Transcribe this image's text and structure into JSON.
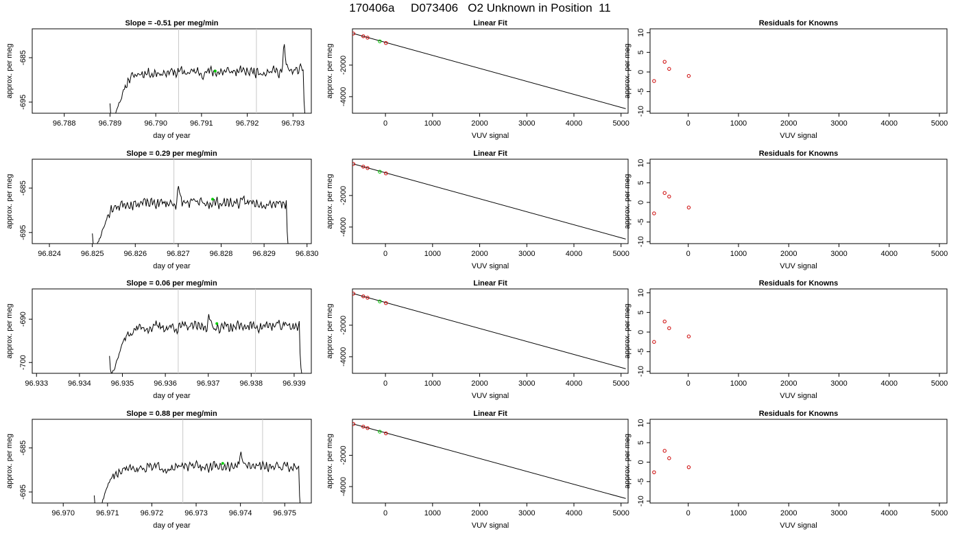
{
  "figure_title": "170406a     D073406   O2 Unknown in Position  11",
  "row_titles": [
    "Slope =  -0.51  per meg/min",
    "Slope =  0.29  per meg/min",
    "Slope =  0.06  per meg/min",
    "Slope =  0.88  per meg/min"
  ],
  "colors": {
    "trace": "#000000",
    "vline": "#c8c8c8",
    "known": "#cc0000",
    "unknown": "#00cc00"
  },
  "chart_data": [
    {
      "type": "line",
      "title": "Slope =  -0.51  per meg/min",
      "xlabel": "day of year",
      "ylabel": "approx. per meg",
      "xlim": [
        96.7873,
        96.7934
      ],
      "ylim": [
        -697.5,
        -678.5
      ],
      "xticks": [
        "96.788",
        "96.789",
        "96.790",
        "96.791",
        "96.792",
        "96.793"
      ],
      "xtick_values": [
        96.788,
        96.789,
        96.79,
        96.791,
        96.792,
        96.793
      ],
      "yticks": [
        "-685",
        "-695"
      ],
      "ytick_values": [
        -685,
        -695
      ],
      "window_lines": [
        96.7905,
        96.7922
      ],
      "unknown_point": {
        "x": 96.7913,
        "y": -688
      },
      "trace": {
        "start": 96.789,
        "end": 96.7933,
        "base": -688.5,
        "slope": 0.6,
        "amp": 1.8,
        "seed": 11,
        "spikes": [
          [
            96.7928,
            8
          ]
        ]
      }
    },
    {
      "type": "line",
      "title": "Slope =  0.29  per meg/min",
      "xlabel": "day of year",
      "ylabel": "approx. per meg",
      "xlim": [
        96.8236,
        96.8301
      ],
      "ylim": [
        -697.5,
        -678.5
      ],
      "xticks": [
        "96.824",
        "96.825",
        "96.826",
        "96.827",
        "96.828",
        "96.829",
        "96.830"
      ],
      "xtick_values": [
        96.824,
        96.825,
        96.826,
        96.827,
        96.828,
        96.829,
        96.83
      ],
      "yticks": [
        "-685",
        "-695"
      ],
      "ytick_values": [
        -685,
        -695
      ],
      "window_lines": [
        96.8269,
        96.8287
      ],
      "unknown_point": {
        "x": 96.8278,
        "y": -687.5
      },
      "trace": {
        "start": 96.825,
        "end": 96.8296,
        "base": -688.5,
        "slope": 0.3,
        "amp": 1.8,
        "seed": 23,
        "spikes": [
          [
            96.827,
            5
          ]
        ]
      }
    },
    {
      "type": "line",
      "title": "Slope =  0.06  per meg/min",
      "xlabel": "day of year",
      "ylabel": "approx. per meg",
      "xlim": [
        96.9329,
        96.9394
      ],
      "ylim": [
        -702.5,
        -683
      ],
      "xticks": [
        "96.933",
        "96.934",
        "96.935",
        "96.936",
        "96.937",
        "96.938",
        "96.939"
      ],
      "xtick_values": [
        96.933,
        96.934,
        96.935,
        96.936,
        96.937,
        96.938,
        96.939
      ],
      "yticks": [
        "-690",
        "-700"
      ],
      "ytick_values": [
        -690,
        -700
      ],
      "window_lines": [
        96.9363,
        96.9381
      ],
      "unknown_point": {
        "x": 96.9372,
        "y": -691
      },
      "trace": {
        "start": 96.9347,
        "end": 96.9392,
        "base": -692,
        "slope": 0.5,
        "amp": 1.9,
        "seed": 37,
        "spikes": [
          [
            96.937,
            4
          ]
        ]
      }
    },
    {
      "type": "line",
      "title": "Slope =  0.88  per meg/min",
      "xlabel": "day of year",
      "ylabel": "approx. per meg",
      "xlim": [
        96.9693,
        96.9756
      ],
      "ylim": [
        -697.5,
        -678.5
      ],
      "xticks": [
        "96.970",
        "96.971",
        "96.972",
        "96.973",
        "96.974",
        "96.975"
      ],
      "xtick_values": [
        96.97,
        96.971,
        96.972,
        96.973,
        96.974,
        96.975
      ],
      "yticks": [
        "-685",
        "-695"
      ],
      "ytick_values": [
        -685,
        -695
      ],
      "window_lines": [
        96.9727,
        96.9745
      ],
      "unknown_point": {
        "x": 96.9736,
        "y": -688.5
      },
      "trace": {
        "start": 96.9707,
        "end": 96.9754,
        "base": -689.5,
        "slope": 0.4,
        "amp": 1.7,
        "seed": 51,
        "spikes": [
          [
            96.974,
            5
          ]
        ]
      }
    },
    {
      "type": "scatter",
      "title": "Linear Fit",
      "xlabel": "VUV signal",
      "ylabel": "approx. per meg",
      "xlim": [
        -700,
        5150
      ],
      "ylim": [
        -5050,
        300
      ],
      "xticks": [
        "0",
        "1000",
        "2000",
        "3000",
        "4000",
        "5000"
      ],
      "xtick_values": [
        0,
        1000,
        2000,
        3000,
        4000,
        5000
      ],
      "yticks": [
        "-2000",
        "-4000"
      ],
      "ytick_values": [
        -2000,
        -4000
      ],
      "fit_line": [
        [
          -680,
          0
        ],
        [
          5100,
          -4760
        ]
      ],
      "knowns": [
        [
          -680,
          0
        ],
        [
          -470,
          -170
        ],
        [
          -380,
          -260
        ],
        [
          10,
          -600
        ]
      ],
      "unknown": [
        [
          -120,
          -490
        ]
      ]
    },
    {
      "type": "scatter",
      "title": "Linear Fit",
      "xlabel": "VUV signal",
      "ylabel": "approx. per meg",
      "xlim": [
        -700,
        5150
      ],
      "ylim": [
        -5050,
        300
      ],
      "xticks": [
        "0",
        "1000",
        "2000",
        "3000",
        "4000",
        "5000"
      ],
      "xtick_values": [
        0,
        1000,
        2000,
        3000,
        4000,
        5000
      ],
      "yticks": [
        "-2000",
        "-4000"
      ],
      "ytick_values": [
        -2000,
        -4000
      ],
      "fit_line": [
        [
          -680,
          0
        ],
        [
          5100,
          -4760
        ]
      ],
      "knowns": [
        [
          -680,
          0
        ],
        [
          -470,
          -170
        ],
        [
          -380,
          -260
        ],
        [
          10,
          -600
        ]
      ],
      "unknown": [
        [
          -120,
          -490
        ]
      ]
    },
    {
      "type": "scatter",
      "title": "Linear Fit",
      "xlabel": "VUV signal",
      "ylabel": "approx. per meg",
      "xlim": [
        -700,
        5150
      ],
      "ylim": [
        -5050,
        300
      ],
      "xticks": [
        "0",
        "1000",
        "2000",
        "3000",
        "4000",
        "5000"
      ],
      "xtick_values": [
        0,
        1000,
        2000,
        3000,
        4000,
        5000
      ],
      "yticks": [
        "-2000",
        "-4000"
      ],
      "ytick_values": [
        -2000,
        -4000
      ],
      "fit_line": [
        [
          -680,
          0
        ],
        [
          5100,
          -4760
        ]
      ],
      "knowns": [
        [
          -680,
          0
        ],
        [
          -470,
          -170
        ],
        [
          -380,
          -260
        ],
        [
          10,
          -600
        ]
      ],
      "unknown": [
        [
          -120,
          -490
        ]
      ]
    },
    {
      "type": "scatter",
      "title": "Linear Fit",
      "xlabel": "VUV signal",
      "ylabel": "approx. per meg",
      "xlim": [
        -700,
        5150
      ],
      "ylim": [
        -5050,
        300
      ],
      "xticks": [
        "0",
        "1000",
        "2000",
        "3000",
        "4000",
        "5000"
      ],
      "xtick_values": [
        0,
        1000,
        2000,
        3000,
        4000,
        5000
      ],
      "yticks": [
        "-2000",
        "-4000"
      ],
      "ytick_values": [
        -2000,
        -4000
      ],
      "fit_line": [
        [
          -680,
          0
        ],
        [
          5100,
          -4760
        ]
      ],
      "knowns": [
        [
          -680,
          0
        ],
        [
          -470,
          -170
        ],
        [
          -380,
          -260
        ],
        [
          10,
          -600
        ]
      ],
      "unknown": [
        [
          -120,
          -490
        ]
      ]
    },
    {
      "type": "scatter",
      "title": "Residuals for Knowns",
      "xlabel": "VUV signal",
      "ylabel": "approx. per meg",
      "xlim": [
        -760,
        5150
      ],
      "ylim": [
        -10.5,
        11
      ],
      "xticks": [
        "0",
        "1000",
        "2000",
        "3000",
        "4000",
        "5000"
      ],
      "xtick_values": [
        0,
        1000,
        2000,
        3000,
        4000,
        5000
      ],
      "yticks": [
        "10",
        "5",
        "0",
        "-5",
        "-10"
      ],
      "ytick_values": [
        10,
        5,
        0,
        -5,
        -10
      ],
      "points": [
        [
          -680,
          -2.3
        ],
        [
          -470,
          2.6
        ],
        [
          -380,
          0.8
        ],
        [
          10,
          -1.0
        ]
      ]
    },
    {
      "type": "scatter",
      "title": "Residuals for Knowns",
      "xlabel": "VUV signal",
      "ylabel": "approx. per meg",
      "xlim": [
        -760,
        5150
      ],
      "ylim": [
        -10.5,
        11
      ],
      "xticks": [
        "0",
        "1000",
        "2000",
        "3000",
        "4000",
        "5000"
      ],
      "xtick_values": [
        0,
        1000,
        2000,
        3000,
        4000,
        5000
      ],
      "yticks": [
        "10",
        "5",
        "0",
        "-5",
        "-10"
      ],
      "ytick_values": [
        10,
        5,
        0,
        -5,
        -10
      ],
      "points": [
        [
          -680,
          -2.8
        ],
        [
          -470,
          2.4
        ],
        [
          -380,
          1.5
        ],
        [
          10,
          -1.3
        ]
      ]
    },
    {
      "type": "scatter",
      "title": "Residuals for Knowns",
      "xlabel": "VUV signal",
      "ylabel": "approx. per meg",
      "xlim": [
        -760,
        5150
      ],
      "ylim": [
        -10.5,
        11
      ],
      "xticks": [
        "0",
        "1000",
        "2000",
        "3000",
        "4000",
        "5000"
      ],
      "xtick_values": [
        0,
        1000,
        2000,
        3000,
        4000,
        5000
      ],
      "yticks": [
        "10",
        "5",
        "0",
        "-5",
        "-10"
      ],
      "ytick_values": [
        10,
        5,
        0,
        -5,
        -10
      ],
      "points": [
        [
          -680,
          -2.5
        ],
        [
          -470,
          2.7
        ],
        [
          -380,
          1.0
        ],
        [
          10,
          -1.1
        ]
      ]
    },
    {
      "type": "scatter",
      "title": "Residuals for Knowns",
      "xlabel": "VUV signal",
      "ylabel": "approx. per meg",
      "xlim": [
        -760,
        5150
      ],
      "ylim": [
        -10.5,
        11
      ],
      "xticks": [
        "0",
        "1000",
        "2000",
        "3000",
        "4000",
        "5000"
      ],
      "xtick_values": [
        0,
        1000,
        2000,
        3000,
        4000,
        5000
      ],
      "yticks": [
        "10",
        "5",
        "0",
        "-5",
        "-10"
      ],
      "ytick_values": [
        10,
        5,
        0,
        -5,
        -10
      ],
      "points": [
        [
          -680,
          -2.6
        ],
        [
          -470,
          2.9
        ],
        [
          -380,
          1.0
        ],
        [
          10,
          -1.3
        ]
      ]
    }
  ]
}
